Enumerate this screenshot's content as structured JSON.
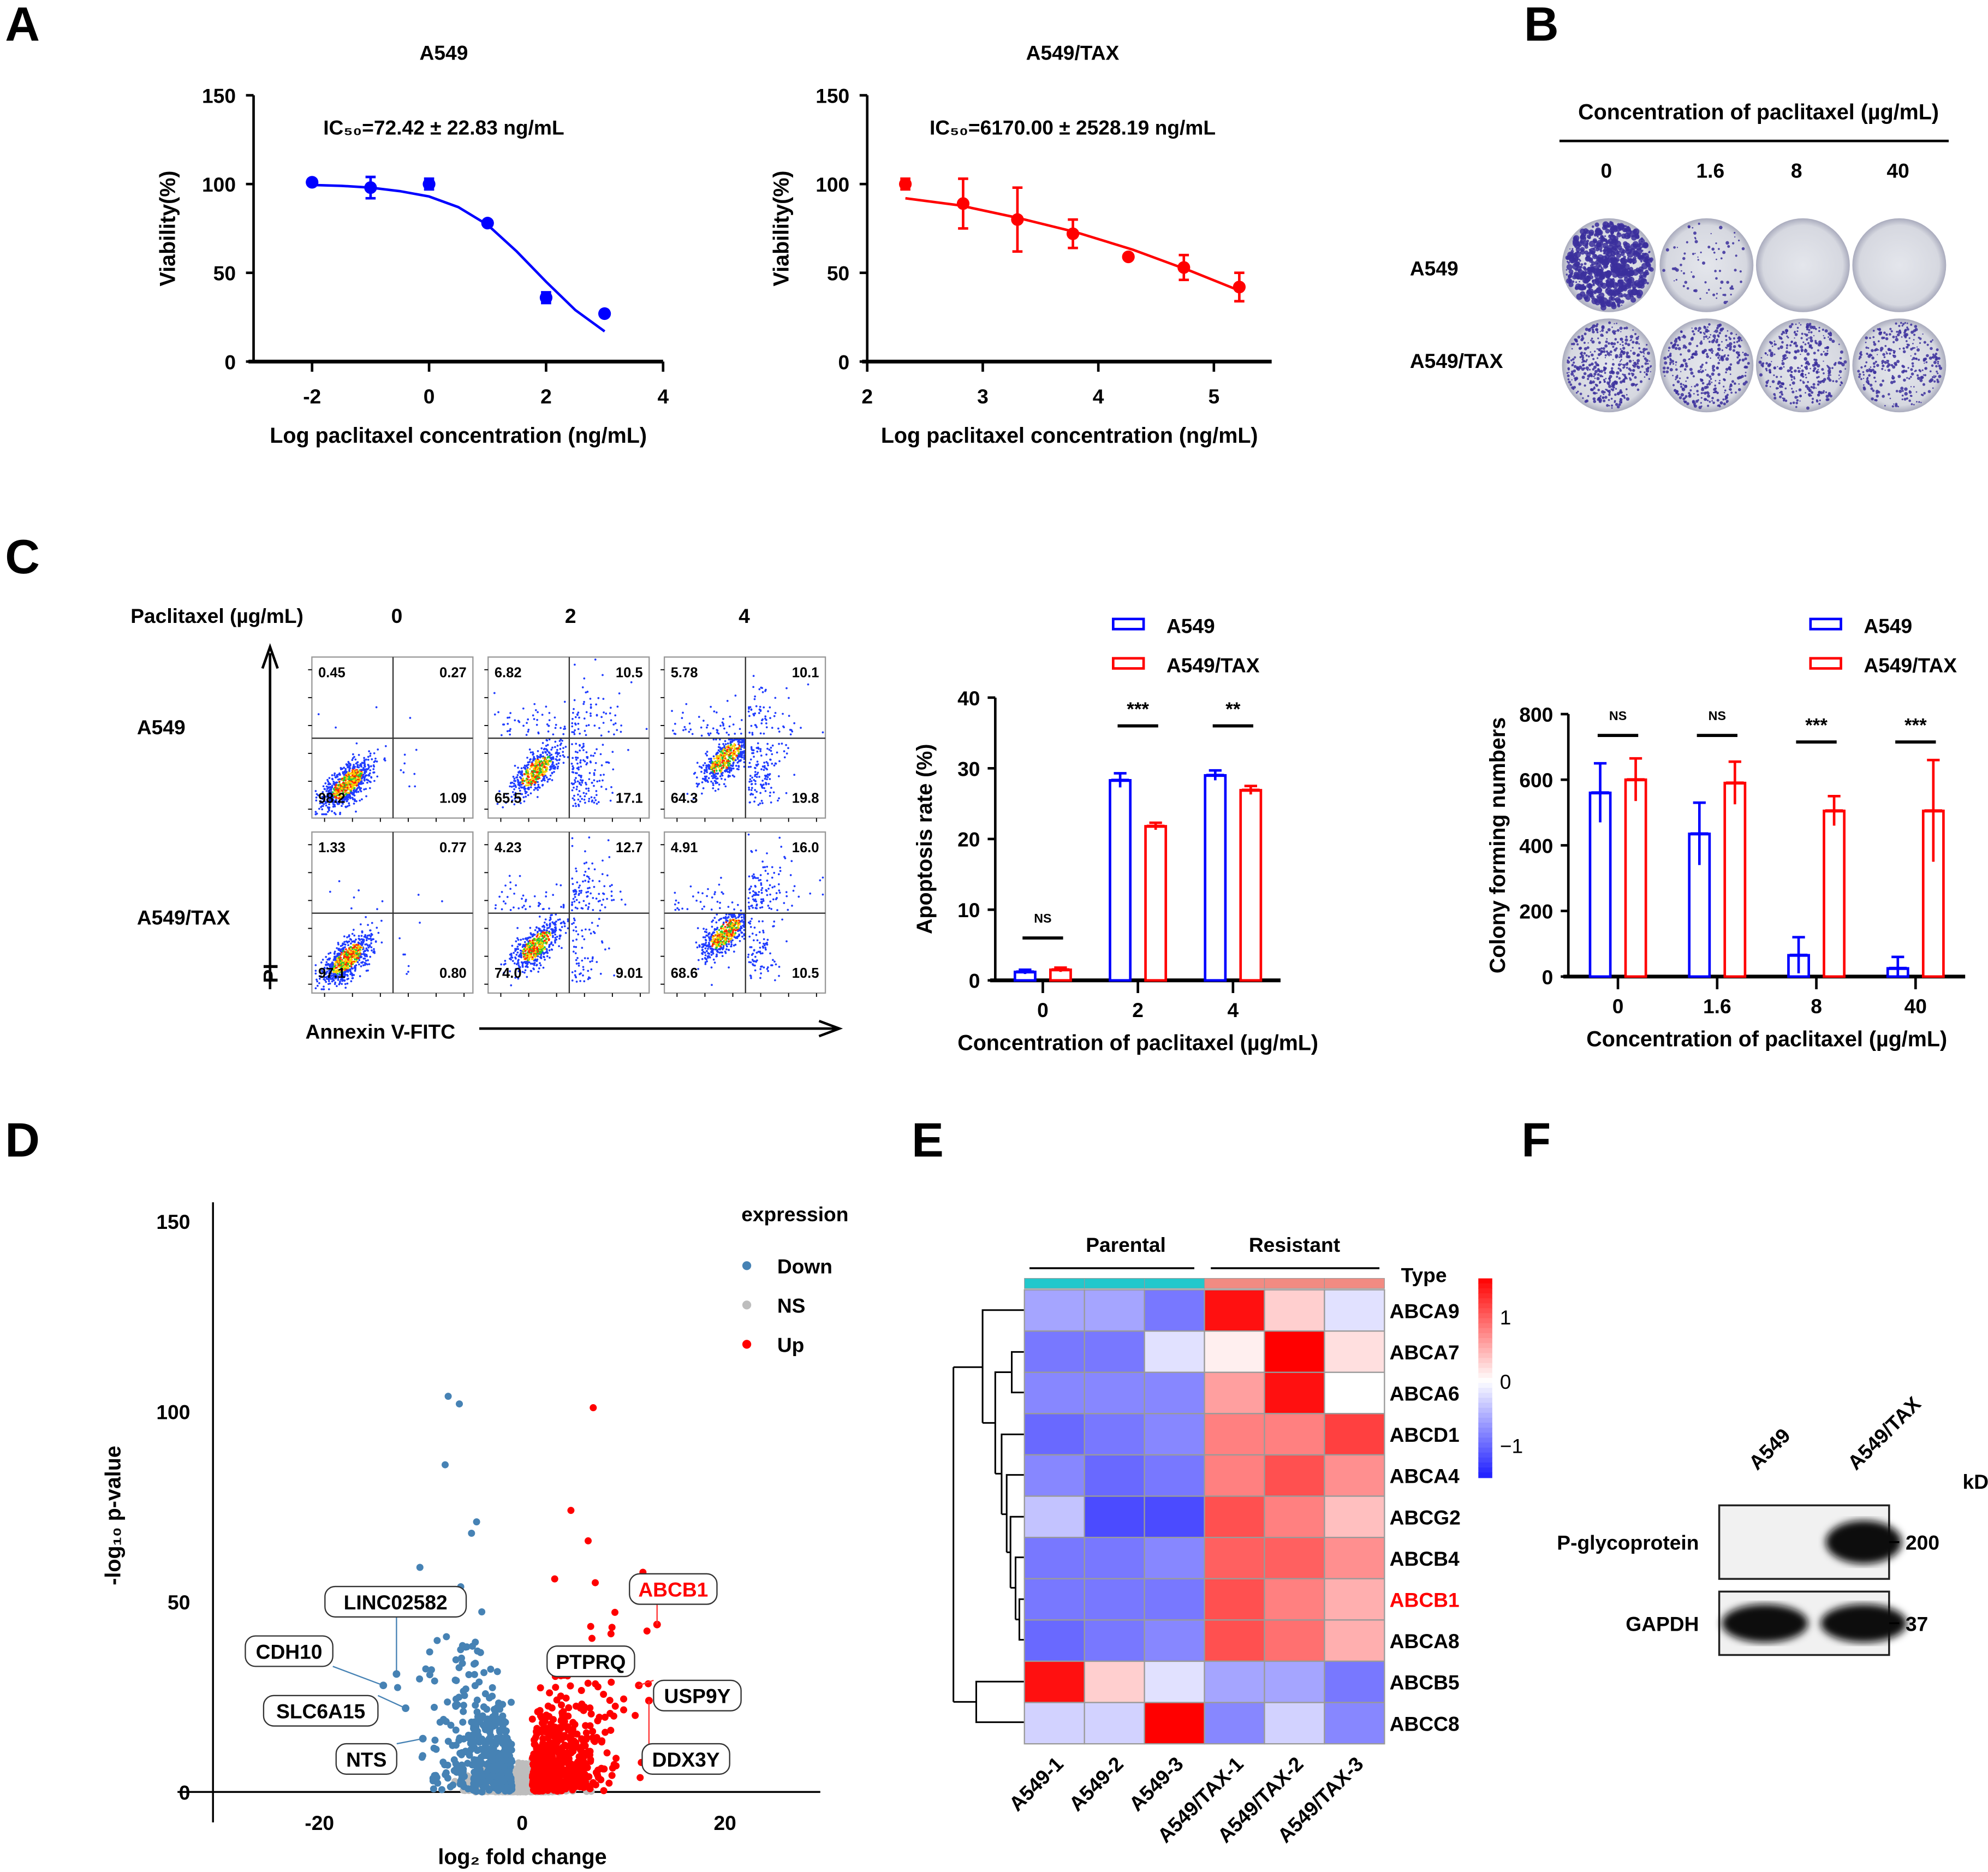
{
  "figure": {
    "panel_labels": [
      "A",
      "B",
      "C",
      "D",
      "E",
      "F"
    ]
  },
  "chart_data": [
    {
      "id": "viability_a549",
      "type": "scatter",
      "title": "A549",
      "annotation": "IC₅₀=72.42 ± 22.83 ng/mL",
      "xlabel": "Log paclitaxel concentration (ng/mL)",
      "ylabel": "Viability(%)",
      "xlim": [
        -3,
        4
      ],
      "ylim": [
        0,
        150
      ],
      "xticks": [
        "-2",
        "0",
        "2",
        "4"
      ],
      "xtick_values": [
        -2,
        0,
        2,
        4
      ],
      "yticks": [
        "0",
        "50",
        "100",
        "150"
      ],
      "ytick_values": [
        0,
        50,
        100,
        150
      ],
      "color": "#0000ff",
      "points": {
        "x": [
          -2,
          -1,
          0,
          1,
          2,
          3
        ],
        "y": [
          101,
          98,
          100,
          78,
          36,
          27
        ],
        "err": [
          1,
          6,
          3,
          1,
          3,
          1
        ]
      },
      "fit": {
        "x": [
          -2,
          -1.5,
          -1,
          -0.5,
          0,
          0.5,
          1,
          1.5,
          2,
          2.5,
          3
        ],
        "y": [
          99.5,
          99,
          98,
          96,
          93,
          87,
          77,
          62,
          45,
          29,
          17
        ]
      }
    },
    {
      "id": "viability_a549_tax",
      "type": "scatter",
      "title": "A549/TAX",
      "annotation": "IC₅₀=6170.00 ± 2528.19 ng/mL",
      "xlabel": "Log paclitaxel concentration (ng/mL)",
      "ylabel": "Viability(%)",
      "xlim": [
        2,
        5.5
      ],
      "ylim": [
        0,
        150
      ],
      "xticks": [
        "2",
        "3",
        "4",
        "5"
      ],
      "xtick_values": [
        2,
        3,
        4,
        5
      ],
      "yticks": [
        "0",
        "50",
        "100",
        "150"
      ],
      "ytick_values": [
        0,
        50,
        100,
        150
      ],
      "color": "#ff0000",
      "points": {
        "x": [
          2.33,
          2.83,
          3.3,
          3.78,
          4.26,
          4.74,
          5.22
        ],
        "y": [
          100,
          89,
          80,
          72,
          59,
          53,
          42
        ],
        "err": [
          3,
          14,
          18,
          8,
          1,
          7,
          8
        ]
      },
      "fit": {
        "x": [
          2.33,
          2.8,
          3.3,
          3.8,
          4.3,
          4.8,
          5.22
        ],
        "y": [
          92,
          88,
          81,
          73,
          63,
          51,
          40
        ]
      }
    },
    {
      "id": "apoptosis_rate",
      "type": "bar",
      "xlabel": "Concentration of paclitaxel (µg/mL)",
      "ylabel": "Apoptosis rate (%)",
      "categories": [
        "0",
        "2",
        "4"
      ],
      "ylim": [
        0,
        40
      ],
      "yticks": [
        "0",
        "10",
        "20",
        "30",
        "40"
      ],
      "ytick_values": [
        0,
        10,
        20,
        30,
        40
      ],
      "series": [
        {
          "name": "A549",
          "color": "#0000ff",
          "values": [
            1.2,
            28.3,
            29.0
          ],
          "errors": [
            0.3,
            1.0,
            0.7
          ]
        },
        {
          "name": "A549/TAX",
          "color": "#ff0000",
          "values": [
            1.5,
            21.8,
            26.9
          ],
          "errors": [
            0.3,
            0.5,
            0.6
          ]
        }
      ],
      "significance": [
        "NS",
        "***",
        "**"
      ],
      "significance_y": [
        6,
        36,
        36
      ],
      "legend": "top"
    },
    {
      "id": "colony_forming",
      "type": "bar",
      "xlabel": "Concentration of paclitaxel (µg/mL)",
      "ylabel": "Colony forming numbers",
      "categories": [
        "0",
        "1.6",
        "8",
        "40"
      ],
      "ylim": [
        0,
        800
      ],
      "yticks": [
        "0",
        "200",
        "400",
        "600",
        "800"
      ],
      "ytick_values": [
        0,
        200,
        400,
        600,
        800
      ],
      "series": [
        {
          "name": "A549",
          "color": "#0000ff",
          "values": [
            560,
            435,
            65,
            25
          ],
          "errors": [
            90,
            95,
            55,
            35
          ]
        },
        {
          "name": "A549/TAX",
          "color": "#ff0000",
          "values": [
            600,
            590,
            505,
            505
          ],
          "errors": [
            65,
            65,
            45,
            155
          ]
        }
      ],
      "significance": [
        "NS",
        "NS",
        "***",
        "***"
      ],
      "significance_y": [
        735,
        735,
        715,
        715
      ],
      "legend": "top-right"
    },
    {
      "id": "volcano",
      "type": "scatter",
      "xlabel": "log₂ fold change",
      "ylabel": "-log₁₀ p-value",
      "xlim": [
        -34,
        29.4
      ],
      "ylim": [
        -8,
        155
      ],
      "xticks": [
        "-20",
        "0",
        "20"
      ],
      "xtick_values": [
        -20,
        0,
        20
      ],
      "yticks": [
        "0",
        "50",
        "100",
        "150"
      ],
      "ytick_values": [
        0,
        50,
        100,
        150
      ],
      "legend_title": "expression",
      "groups": [
        {
          "name": "Down",
          "color": "#4682b4",
          "count": 420
        },
        {
          "name": "NS",
          "color": "#bdbdbd",
          "count": 1500
        },
        {
          "name": "Up",
          "color": "#ff0000",
          "count": 520
        }
      ],
      "highlight_points": [
        {
          "x": -7.3,
          "y": 104,
          "group": "Down"
        },
        {
          "x": -6.2,
          "y": 102,
          "group": "Down"
        },
        {
          "x": -7.6,
          "y": 86,
          "group": "Down"
        },
        {
          "x": -4.5,
          "y": 71,
          "group": "Down"
        },
        {
          "x": -5,
          "y": 68,
          "group": "Down"
        },
        {
          "x": 7,
          "y": 101,
          "group": "Up"
        },
        {
          "x": 4.8,
          "y": 74,
          "group": "Up"
        },
        {
          "x": 6.5,
          "y": 66,
          "group": "Up"
        },
        {
          "x": 3.2,
          "y": 56,
          "group": "Up"
        },
        {
          "x": 7.2,
          "y": 55,
          "group": "Up"
        }
      ],
      "labeled_genes": [
        {
          "gene": "LINC02582",
          "x": -12.4,
          "y": 31,
          "color": "#000000"
        },
        {
          "gene": "CDH10",
          "x": -13.7,
          "y": 28,
          "color": "#000000"
        },
        {
          "gene": "SLC6A15",
          "x": -11.5,
          "y": 22,
          "color": "#000000"
        },
        {
          "gene": "NTS",
          "x": -9.8,
          "y": 14,
          "color": "#000000"
        },
        {
          "gene": "PTPRQ",
          "x": 4.5,
          "y": 33,
          "color": "#000000"
        },
        {
          "gene": "USP9Y",
          "x": 11.5,
          "y": 28,
          "color": "#000000"
        },
        {
          "gene": "DDX3Y",
          "x": 12.5,
          "y": 24,
          "color": "#000000"
        },
        {
          "gene": "ABCB1",
          "x": 13.3,
          "y": 44,
          "color": "#ff0000"
        }
      ]
    },
    {
      "id": "abc_heatmap",
      "type": "heatmap",
      "groups": [
        {
          "name": "Parental",
          "color": "#22c8cc"
        },
        {
          "name": "Resistant",
          "color": "#f28b82"
        }
      ],
      "type_label": "Type",
      "columns": [
        "A549-1",
        "A549-2",
        "A549-3",
        "A549/TAX-1",
        "A549/TAX-2",
        "A549/TAX-3"
      ],
      "rows": [
        "ABCA9",
        "ABCA7",
        "ABCA6",
        "ABCD1",
        "ABCA4",
        "ABCG2",
        "ABCB4",
        "ABCB1",
        "ABCA8",
        "ABCB5",
        "ABCC8"
      ],
      "highlight_row": "ABCB1",
      "highlight_color": "#ff0000",
      "values": [
        [
          -0.6,
          -0.6,
          -0.9,
          1.5,
          0.3,
          -0.2
        ],
        [
          -0.9,
          -0.9,
          -0.2,
          0.1,
          1.6,
          0.2
        ],
        [
          -0.8,
          -0.8,
          -0.8,
          0.6,
          1.5,
          0.0
        ],
        [
          -1.0,
          -0.9,
          -0.8,
          0.8,
          0.8,
          1.2
        ],
        [
          -0.8,
          -1.0,
          -0.9,
          0.8,
          1.1,
          0.7
        ],
        [
          -0.4,
          -1.2,
          -1.2,
          1.1,
          0.8,
          0.4
        ],
        [
          -0.9,
          -0.9,
          -0.8,
          1.0,
          1.0,
          0.7
        ],
        [
          -0.9,
          -0.9,
          -0.9,
          1.1,
          0.8,
          0.5
        ],
        [
          -1.0,
          -0.9,
          -0.8,
          1.1,
          0.9,
          0.5
        ],
        [
          1.5,
          0.3,
          -0.2,
          -0.6,
          -0.6,
          -0.9
        ],
        [
          -0.3,
          -0.3,
          1.6,
          -0.8,
          -0.3,
          -0.8
        ]
      ],
      "scale_ticks": [
        "1",
        "0",
        "−1"
      ],
      "scale_tick_values": [
        1,
        0,
        -1
      ],
      "scale_range": [
        -1.5,
        1.6
      ]
    }
  ],
  "colony_assay": {
    "header": "Concentration of  paclitaxel (µg/mL)",
    "concentrations": [
      "0",
      "1.6",
      "8",
      "40"
    ],
    "rows": [
      {
        "label": "A549",
        "density": [
          1.0,
          0.12,
          0.0,
          0.0
        ]
      },
      {
        "label": "A549/TAX",
        "density": [
          0.65,
          0.55,
          0.5,
          0.45
        ]
      }
    ]
  },
  "flow": {
    "header": "Paclitaxel (µg/mL)",
    "doses": [
      "0",
      "2",
      "4"
    ],
    "y_axis": "PI",
    "x_axis": "Annexin V-FITC",
    "rows": [
      {
        "label": "A549",
        "plots": [
          {
            "ul": "0.45",
            "ur": "0.27",
            "ll": "98.2",
            "lr": "1.09"
          },
          {
            "ul": "6.82",
            "ur": "10.5",
            "ll": "65.5",
            "lr": "17.1"
          },
          {
            "ul": "5.78",
            "ur": "10.1",
            "ll": "64.3",
            "lr": "19.8"
          }
        ]
      },
      {
        "label": "A549/TAX",
        "plots": [
          {
            "ul": "1.33",
            "ur": "0.77",
            "ll": "97.1",
            "lr": "0.80"
          },
          {
            "ul": "4.23",
            "ur": "12.7",
            "ll": "74.0",
            "lr": "9.01"
          },
          {
            "ul": "4.91",
            "ur": "16.0",
            "ll": "68.6",
            "lr": "10.5"
          }
        ]
      }
    ]
  },
  "western": {
    "lanes": [
      "A549",
      "A549/TAX"
    ],
    "unit": "kDa",
    "bands": [
      {
        "protein": "P-glycoprotein",
        "mw": "200",
        "intensity": [
          0.03,
          1.0
        ]
      },
      {
        "protein": "GAPDH",
        "mw": "37",
        "intensity": [
          1.0,
          1.0
        ]
      }
    ]
  }
}
